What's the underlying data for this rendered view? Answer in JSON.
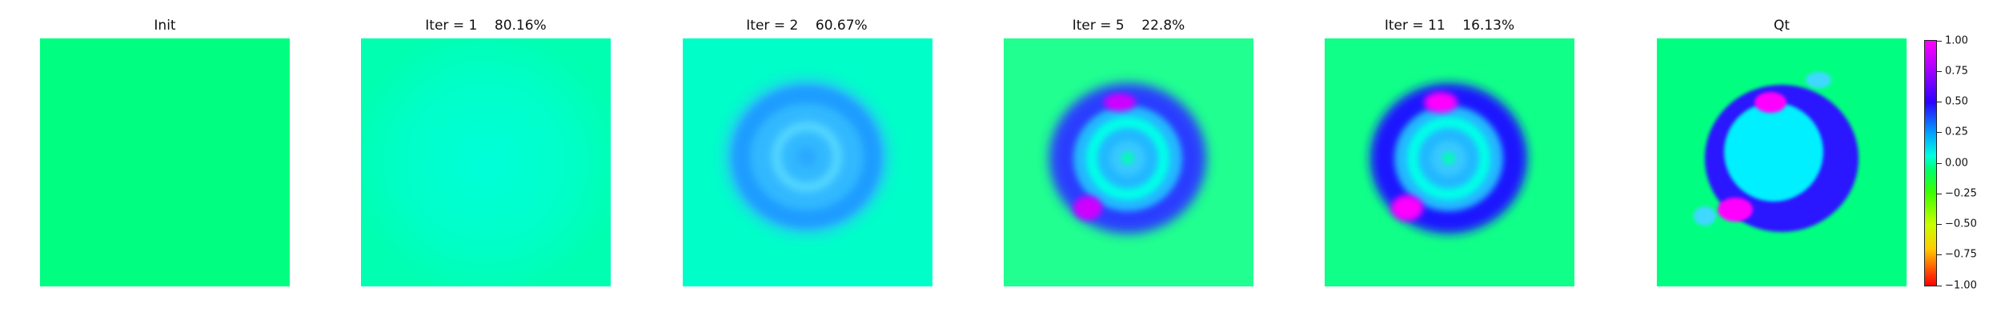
{
  "panels": [
    {
      "title": "Init"
    },
    {
      "title": "Iter = 1    80.16%"
    },
    {
      "title": "Iter = 2    60.67%"
    },
    {
      "title": "Iter = 5    22.8%"
    },
    {
      "title": "Iter = 11    16.13%"
    },
    {
      "title": "Qt"
    }
  ],
  "colorbar": {
    "ticks": [
      "1.00",
      "0.75",
      "0.50",
      "0.25",
      "0.00",
      "−0.25",
      "−0.50",
      "−0.75",
      "−1.00"
    ]
  },
  "colors": {
    "background_green": "#00ff80",
    "cyan": "#00ffe0",
    "blue": "#1400ff",
    "magenta": "#ff00ff"
  }
}
